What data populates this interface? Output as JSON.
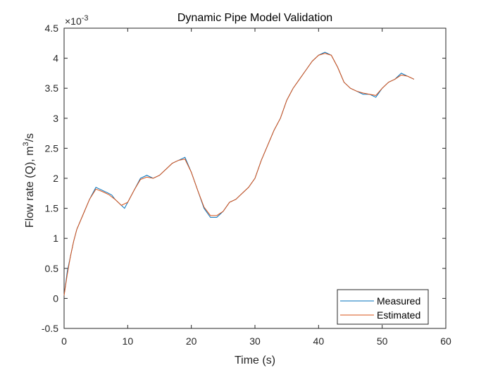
{
  "chart_data": {
    "type": "line",
    "title": "Dynamic Pipe Model Validation",
    "xlabel": "Time (s)",
    "ylabel": "Flow rate (Q), m³/s",
    "ylabel_parts": {
      "main": "Flow rate (Q), m",
      "sup": "3",
      "tail": "/s"
    },
    "y_exponent": {
      "base": "×10",
      "power": "-3"
    },
    "xlim": [
      0,
      60
    ],
    "ylim": [
      -0.5,
      4.5
    ],
    "x_ticks": [
      0,
      10,
      20,
      30,
      40,
      50,
      60
    ],
    "y_ticks": [
      -0.5,
      0,
      0.5,
      1,
      1.5,
      2,
      2.5,
      3,
      3.5,
      4,
      4.5
    ],
    "y_tick_labels": [
      "-0.5",
      "0",
      "0.5",
      "1",
      "1.5",
      "2",
      "2.5",
      "3",
      "3.5",
      "4",
      "4.5"
    ],
    "legend_position": "bottom-right",
    "grid": false,
    "series": [
      {
        "name": "Measured",
        "color": "#0072BD",
        "points": [
          [
            0,
            0.05
          ],
          [
            0.5,
            0.45
          ],
          [
            1,
            0.7
          ],
          [
            1.5,
            0.95
          ],
          [
            2,
            1.15
          ],
          [
            3,
            1.4
          ],
          [
            4,
            1.65
          ],
          [
            5,
            1.85
          ],
          [
            6,
            1.8
          ],
          [
            7,
            1.75
          ],
          [
            7.5,
            1.72
          ],
          [
            8,
            1.65
          ],
          [
            9,
            1.55
          ],
          [
            9.5,
            1.5
          ],
          [
            10,
            1.6
          ],
          [
            11,
            1.8
          ],
          [
            12,
            2.0
          ],
          [
            13,
            2.05
          ],
          [
            14,
            2.0
          ],
          [
            15,
            2.05
          ],
          [
            16,
            2.15
          ],
          [
            17,
            2.25
          ],
          [
            18,
            2.3
          ],
          [
            19,
            2.35
          ],
          [
            20,
            2.1
          ],
          [
            21,
            1.8
          ],
          [
            22,
            1.5
          ],
          [
            23,
            1.35
          ],
          [
            24,
            1.35
          ],
          [
            25,
            1.45
          ],
          [
            26,
            1.6
          ],
          [
            27,
            1.65
          ],
          [
            28,
            1.75
          ],
          [
            29,
            1.85
          ],
          [
            30,
            2.0
          ],
          [
            31,
            2.3
          ],
          [
            32,
            2.55
          ],
          [
            33,
            2.8
          ],
          [
            34,
            3.0
          ],
          [
            35,
            3.3
          ],
          [
            36,
            3.5
          ],
          [
            37,
            3.65
          ],
          [
            38,
            3.8
          ],
          [
            39,
            3.95
          ],
          [
            40,
            4.05
          ],
          [
            41,
            4.1
          ],
          [
            42,
            4.05
          ],
          [
            43,
            3.85
          ],
          [
            44,
            3.6
          ],
          [
            45,
            3.5
          ],
          [
            46,
            3.45
          ],
          [
            47,
            3.4
          ],
          [
            48,
            3.4
          ],
          [
            49,
            3.35
          ],
          [
            50,
            3.5
          ],
          [
            51,
            3.6
          ],
          [
            52,
            3.65
          ],
          [
            53,
            3.75
          ],
          [
            54,
            3.7
          ],
          [
            55,
            3.65
          ]
        ]
      },
      {
        "name": "Estimated",
        "color": "#D95319",
        "points": [
          [
            0,
            0.05
          ],
          [
            0.5,
            0.4
          ],
          [
            1,
            0.7
          ],
          [
            1.5,
            0.95
          ],
          [
            2,
            1.15
          ],
          [
            3,
            1.4
          ],
          [
            4,
            1.65
          ],
          [
            5,
            1.82
          ],
          [
            6,
            1.78
          ],
          [
            7,
            1.73
          ],
          [
            8,
            1.65
          ],
          [
            9,
            1.55
          ],
          [
            10,
            1.6
          ],
          [
            11,
            1.8
          ],
          [
            12,
            1.98
          ],
          [
            13,
            2.02
          ],
          [
            14,
            2.0
          ],
          [
            15,
            2.05
          ],
          [
            16,
            2.15
          ],
          [
            17,
            2.25
          ],
          [
            18,
            2.3
          ],
          [
            19,
            2.32
          ],
          [
            20,
            2.1
          ],
          [
            21,
            1.8
          ],
          [
            22,
            1.52
          ],
          [
            23,
            1.38
          ],
          [
            24,
            1.38
          ],
          [
            25,
            1.45
          ],
          [
            26,
            1.6
          ],
          [
            27,
            1.65
          ],
          [
            28,
            1.75
          ],
          [
            29,
            1.85
          ],
          [
            30,
            2.0
          ],
          [
            31,
            2.3
          ],
          [
            32,
            2.55
          ],
          [
            33,
            2.8
          ],
          [
            34,
            3.0
          ],
          [
            35,
            3.3
          ],
          [
            36,
            3.5
          ],
          [
            37,
            3.65
          ],
          [
            38,
            3.8
          ],
          [
            39,
            3.95
          ],
          [
            40,
            4.05
          ],
          [
            41,
            4.08
          ],
          [
            42,
            4.05
          ],
          [
            43,
            3.85
          ],
          [
            44,
            3.6
          ],
          [
            45,
            3.5
          ],
          [
            46,
            3.45
          ],
          [
            47,
            3.42
          ],
          [
            48,
            3.4
          ],
          [
            49,
            3.38
          ],
          [
            50,
            3.5
          ],
          [
            51,
            3.6
          ],
          [
            52,
            3.65
          ],
          [
            53,
            3.72
          ],
          [
            54,
            3.7
          ],
          [
            55,
            3.65
          ]
        ]
      }
    ]
  }
}
